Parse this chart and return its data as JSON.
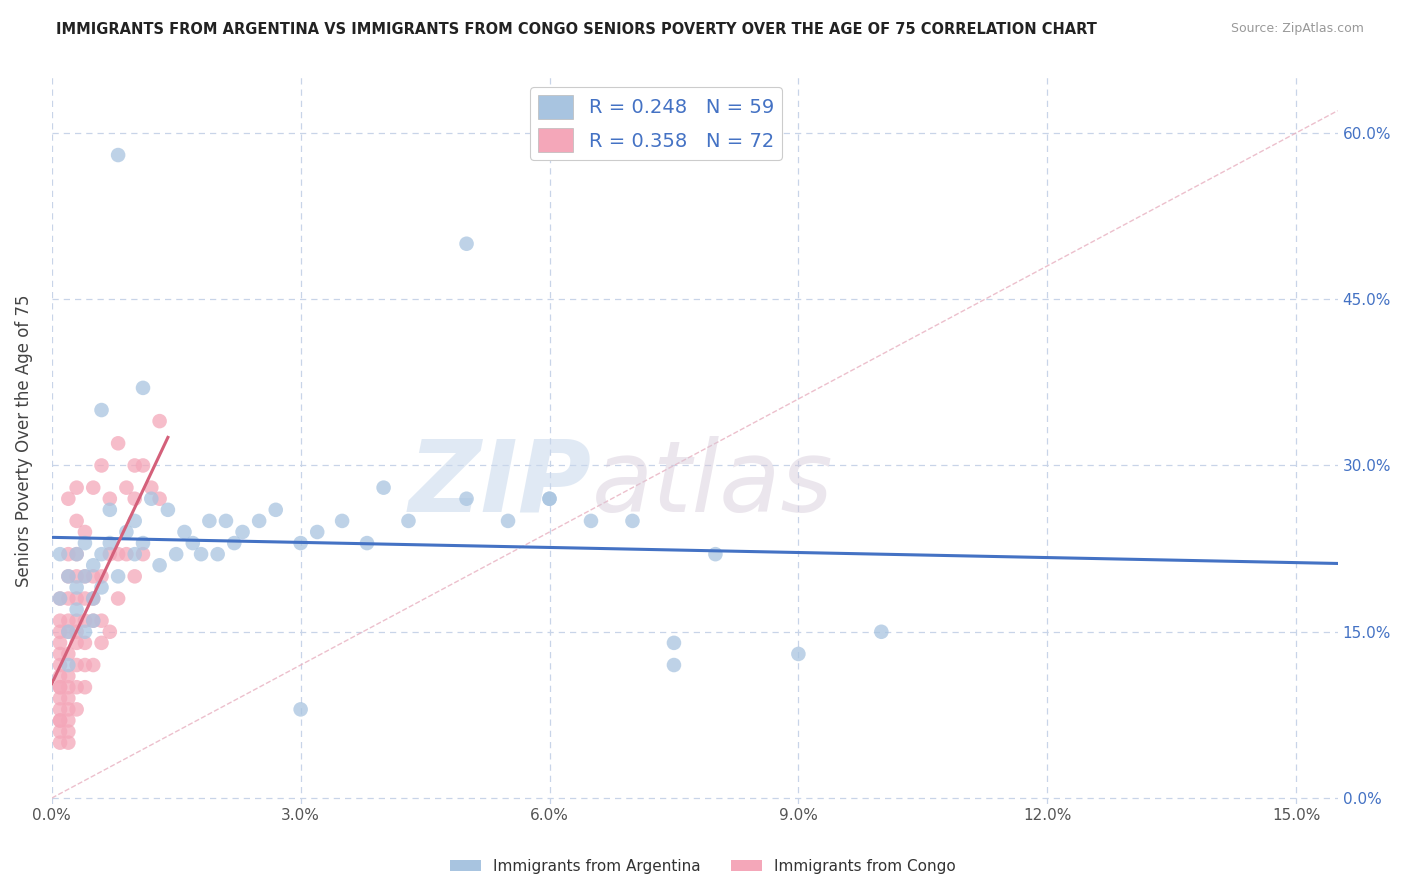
{
  "title": "IMMIGRANTS FROM ARGENTINA VS IMMIGRANTS FROM CONGO SENIORS POVERTY OVER THE AGE OF 75 CORRELATION CHART",
  "source": "Source: ZipAtlas.com",
  "xlabel": "",
  "ylabel": "Seniors Poverty Over the Age of 75",
  "legend_label_1": "Immigrants from Argentina",
  "legend_label_2": "Immigrants from Congo",
  "R1": 0.248,
  "N1": 59,
  "R2": 0.358,
  "N2": 72,
  "color1": "#a8c4e0",
  "color2": "#f4a7b9",
  "trend_color1": "#4472c4",
  "trend_color2": "#d4607a",
  "xlim": [
    0.0,
    0.155
  ],
  "ylim": [
    -0.005,
    0.65
  ],
  "xticks": [
    0.0,
    0.03,
    0.06,
    0.09,
    0.12,
    0.15
  ],
  "xtick_labels": [
    "0.0%",
    "3.0%",
    "6.0%",
    "9.0%",
    "12.0%",
    "15.0%"
  ],
  "yticks": [
    0.0,
    0.15,
    0.3,
    0.45,
    0.6
  ],
  "ytick_labels": [
    "0.0%",
    "15.0%",
    "30.0%",
    "45.0%",
    "60.0%"
  ],
  "watermark_zip": "ZIP",
  "watermark_atlas": "atlas",
  "background_color": "#ffffff",
  "grid_color": "#c8d4e8",
  "argentina_x": [
    0.001,
    0.001,
    0.002,
    0.002,
    0.002,
    0.003,
    0.003,
    0.003,
    0.004,
    0.004,
    0.004,
    0.005,
    0.005,
    0.005,
    0.006,
    0.006,
    0.006,
    0.007,
    0.007,
    0.008,
    0.008,
    0.009,
    0.01,
    0.01,
    0.011,
    0.011,
    0.012,
    0.013,
    0.014,
    0.015,
    0.016,
    0.017,
    0.018,
    0.019,
    0.02,
    0.021,
    0.022,
    0.023,
    0.025,
    0.027,
    0.03,
    0.032,
    0.035,
    0.038,
    0.04,
    0.043,
    0.05,
    0.055,
    0.06,
    0.065,
    0.07,
    0.075,
    0.08,
    0.09,
    0.05,
    0.06,
    0.075,
    0.1,
    0.03
  ],
  "argentina_y": [
    0.18,
    0.22,
    0.15,
    0.12,
    0.2,
    0.17,
    0.22,
    0.19,
    0.2,
    0.15,
    0.23,
    0.18,
    0.21,
    0.16,
    0.35,
    0.22,
    0.19,
    0.26,
    0.23,
    0.58,
    0.2,
    0.24,
    0.25,
    0.22,
    0.37,
    0.23,
    0.27,
    0.21,
    0.26,
    0.22,
    0.24,
    0.23,
    0.22,
    0.25,
    0.22,
    0.25,
    0.23,
    0.24,
    0.25,
    0.26,
    0.23,
    0.24,
    0.25,
    0.23,
    0.28,
    0.25,
    0.27,
    0.25,
    0.27,
    0.25,
    0.25,
    0.14,
    0.22,
    0.13,
    0.5,
    0.27,
    0.12,
    0.15,
    0.08
  ],
  "congo_x": [
    0.001,
    0.001,
    0.001,
    0.001,
    0.001,
    0.001,
    0.001,
    0.001,
    0.001,
    0.001,
    0.001,
    0.001,
    0.001,
    0.001,
    0.001,
    0.002,
    0.002,
    0.002,
    0.002,
    0.002,
    0.002,
    0.002,
    0.002,
    0.002,
    0.002,
    0.002,
    0.002,
    0.002,
    0.002,
    0.003,
    0.003,
    0.003,
    0.003,
    0.003,
    0.003,
    0.003,
    0.003,
    0.003,
    0.003,
    0.003,
    0.004,
    0.004,
    0.004,
    0.004,
    0.004,
    0.004,
    0.004,
    0.005,
    0.005,
    0.005,
    0.005,
    0.005,
    0.006,
    0.006,
    0.006,
    0.006,
    0.007,
    0.007,
    0.007,
    0.008,
    0.008,
    0.008,
    0.009,
    0.009,
    0.01,
    0.01,
    0.01,
    0.011,
    0.011,
    0.012,
    0.013,
    0.013
  ],
  "congo_y": [
    0.05,
    0.06,
    0.07,
    0.07,
    0.08,
    0.09,
    0.1,
    0.1,
    0.11,
    0.12,
    0.13,
    0.14,
    0.15,
    0.16,
    0.18,
    0.05,
    0.06,
    0.07,
    0.08,
    0.09,
    0.1,
    0.11,
    0.13,
    0.15,
    0.16,
    0.18,
    0.2,
    0.22,
    0.27,
    0.08,
    0.1,
    0.12,
    0.14,
    0.15,
    0.16,
    0.18,
    0.2,
    0.22,
    0.25,
    0.28,
    0.1,
    0.12,
    0.14,
    0.16,
    0.18,
    0.2,
    0.24,
    0.12,
    0.16,
    0.18,
    0.2,
    0.28,
    0.14,
    0.16,
    0.2,
    0.3,
    0.15,
    0.22,
    0.27,
    0.18,
    0.22,
    0.32,
    0.22,
    0.28,
    0.2,
    0.27,
    0.3,
    0.22,
    0.3,
    0.28,
    0.27,
    0.34
  ]
}
